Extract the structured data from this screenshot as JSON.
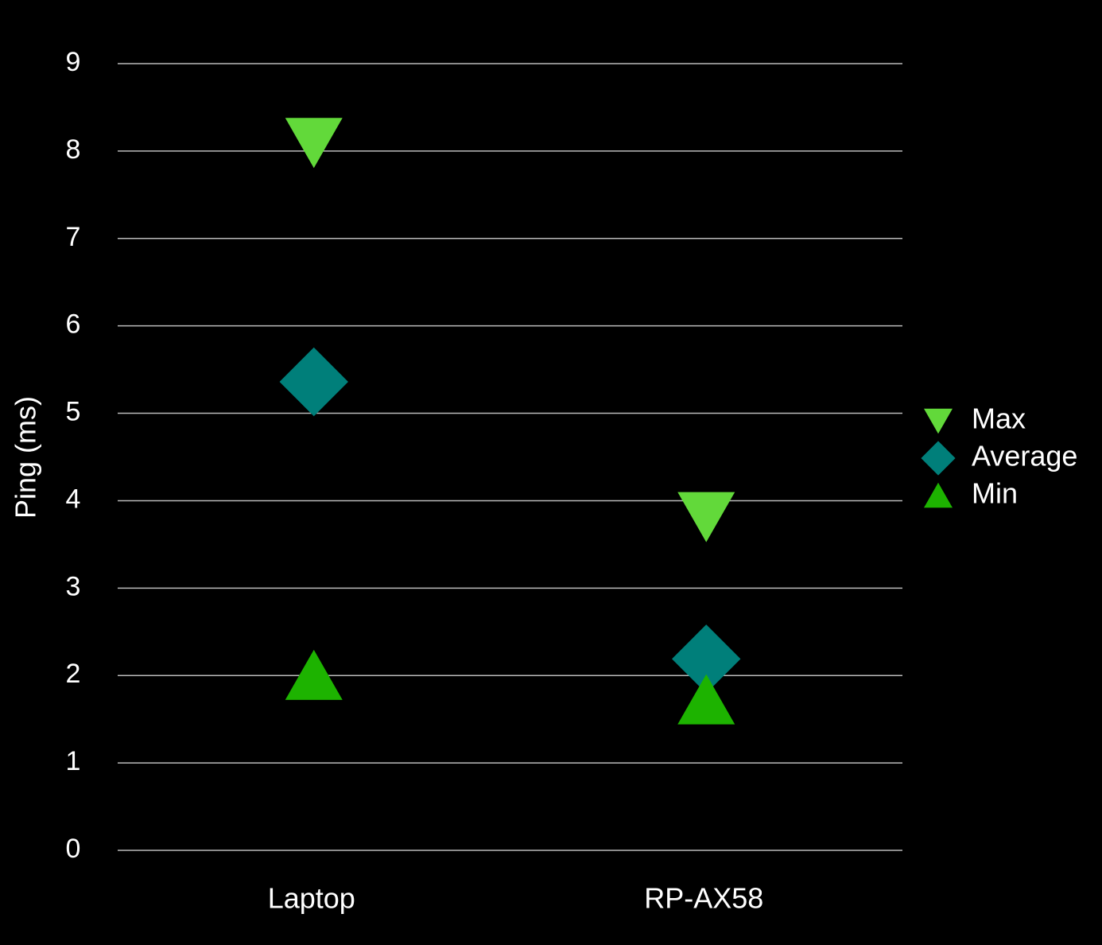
{
  "chart_data": {
    "type": "dot",
    "y_label": "Ping (ms)",
    "categories": [
      "Laptop",
      "RP-AX58"
    ],
    "series": [
      {
        "name": "Max",
        "color": "#62d93a",
        "marker": "triangle-down",
        "values": [
          8.1,
          3.82
        ]
      },
      {
        "name": "Average",
        "color": "#007f7a",
        "marker": "diamond",
        "values": [
          5.36,
          2.19
        ]
      },
      {
        "name": "Min",
        "color": "#1db300",
        "marker": "triangle-up",
        "values": [
          2.0,
          1.72
        ]
      }
    ],
    "ylim": [
      0,
      9
    ],
    "yticks": [
      0,
      1,
      2,
      3,
      4,
      5,
      6,
      7,
      8,
      9
    ],
    "grid": true,
    "legend": "right"
  }
}
